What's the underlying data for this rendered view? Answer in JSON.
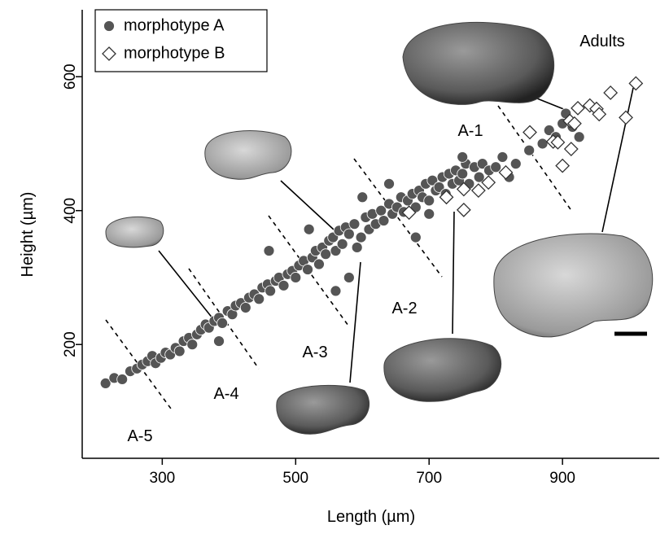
{
  "chart_data": {
    "type": "scatter",
    "x_label": "Length (µm)",
    "y_label": "Height (µm)",
    "xlim": [
      180,
      1045
    ],
    "ylim": [
      30,
      700
    ],
    "xticks": [
      300,
      500,
      700,
      900
    ],
    "yticks": [
      200,
      400,
      600
    ],
    "legend": "upper left",
    "annotations": [
      "A-1",
      "A-2",
      "A-3",
      "A-4",
      "A-5",
      "Adults"
    ],
    "series": [
      {
        "name": "morphotype A",
        "color": "#555555",
        "marker": "circle",
        "x": [
          215,
          228,
          240,
          252,
          262,
          270,
          278,
          285,
          290,
          298,
          305,
          312,
          320,
          326,
          332,
          340,
          345,
          352,
          358,
          365,
          370,
          378,
          385,
          390,
          398,
          405,
          410,
          418,
          425,
          430,
          438,
          445,
          450,
          458,
          462,
          470,
          475,
          482,
          488,
          495,
          500,
          505,
          512,
          518,
          525,
          530,
          535,
          540,
          545,
          550,
          556,
          560,
          565,
          570,
          575,
          580,
          588,
          592,
          598,
          605,
          610,
          615,
          620,
          628,
          632,
          640,
          645,
          652,
          658,
          662,
          668,
          675,
          680,
          685,
          690,
          695,
          700,
          705,
          710,
          715,
          720,
          725,
          730,
          735,
          740,
          745,
          750,
          755,
          760,
          768,
          775,
          780,
          790,
          800,
          810,
          820,
          830,
          850,
          870,
          880,
          890,
          900,
          905,
          915,
          925,
          560,
          460,
          640,
          580,
          680,
          520,
          700,
          750,
          600,
          385
        ],
        "y": [
          142,
          150,
          148,
          160,
          164,
          170,
          175,
          183,
          172,
          180,
          188,
          185,
          195,
          190,
          205,
          210,
          200,
          215,
          222,
          230,
          225,
          235,
          240,
          232,
          250,
          245,
          258,
          262,
          255,
          270,
          275,
          268,
          285,
          290,
          280,
          295,
          300,
          288,
          305,
          310,
          300,
          318,
          325,
          312,
          330,
          340,
          320,
          345,
          335,
          355,
          360,
          340,
          370,
          350,
          375,
          365,
          380,
          345,
          360,
          390,
          372,
          395,
          380,
          400,
          385,
          410,
          395,
          405,
          420,
          398,
          415,
          425,
          405,
          430,
          420,
          440,
          415,
          445,
          430,
          435,
          450,
          425,
          455,
          440,
          460,
          445,
          455,
          470,
          440,
          465,
          450,
          470,
          460,
          465,
          480,
          450,
          470,
          490,
          500,
          520,
          510,
          530,
          545,
          525,
          510,
          280,
          340,
          440,
          300,
          360,
          372,
          395,
          480,
          420,
          205
        ]
      },
      {
        "name": "morphotype B",
        "color": "#ffffff",
        "marker": "diamond",
        "x": [
          670,
          726,
          752,
          752,
          774,
          789,
          815,
          851,
          886,
          893,
          913,
          900,
          911,
          918,
          923,
          941,
          951,
          955,
          972,
          995,
          1010
        ],
        "y": [
          397,
          420,
          401,
          432,
          430,
          442,
          457,
          517,
          503,
          502,
          492,
          467,
          534,
          530,
          553,
          557,
          552,
          544,
          576,
          539,
          590
        ]
      }
    ]
  }
}
